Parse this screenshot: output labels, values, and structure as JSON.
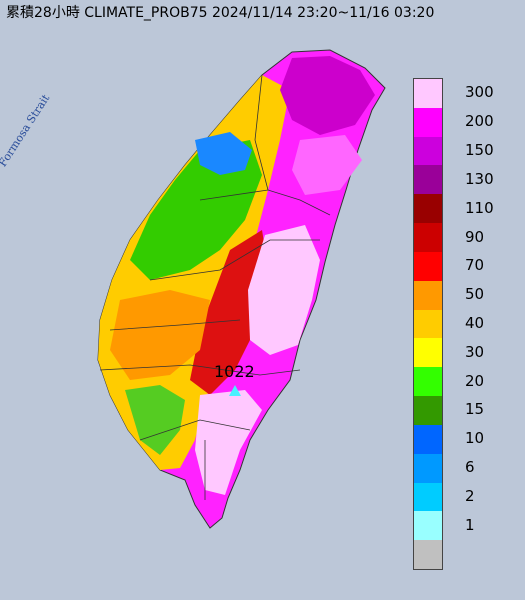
{
  "title": "累積28小時 CLIMATE_PROB75 2024/11/14 23:20~11/16 03:20",
  "strait_label": "Formosa Strait",
  "station": {
    "label": "1022"
  },
  "legend": [
    {
      "label": "300",
      "color": "#ffc8ff"
    },
    {
      "label": "200",
      "color": "#ff00ff"
    },
    {
      "label": "150",
      "color": "#cc00dd"
    },
    {
      "label": "130",
      "color": "#9a0099"
    },
    {
      "label": "110",
      "color": "#990000"
    },
    {
      "label": "90",
      "color": "#cc0000"
    },
    {
      "label": "70",
      "color": "#ff0000"
    },
    {
      "label": "50",
      "color": "#ff9900"
    },
    {
      "label": "40",
      "color": "#ffcc00"
    },
    {
      "label": "30",
      "color": "#ffff00"
    },
    {
      "label": "20",
      "color": "#33ff00"
    },
    {
      "label": "15",
      "color": "#339900"
    },
    {
      "label": "10",
      "color": "#0066ff"
    },
    {
      "label": "6",
      "color": "#0099ff"
    },
    {
      "label": "2",
      "color": "#00ccff"
    },
    {
      "label": "1",
      "color": "#99ffff"
    },
    {
      "label": "",
      "color": "#c0c0c0"
    }
  ]
}
